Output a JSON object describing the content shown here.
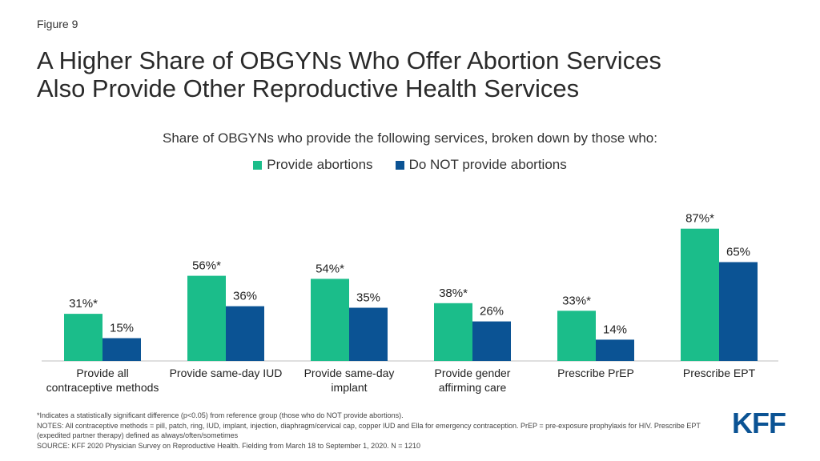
{
  "figure_label": "Figure 9",
  "title_line1": "A Higher Share of OBGYNs Who Offer Abortion Services",
  "title_line2": "Also Provide Other Reproductive Health Services",
  "logo_text": "KFF",
  "notes": {
    "significance": "*Indicates a statistically significant difference  (p<0.05) from reference  group (those who do NOT  provide  abortions).",
    "methods": "NOTES: All contraceptive methods = pill, patch, ring, IUD, implant, injection, diaphragm/cervical  cap, copper IUD and Ella for emergency contraception. PrEP = pre-exposure prophylaxis for HIV. Prescribe EPT (expedited partner therapy) defined as always/often/sometimes",
    "source": "SOURCE: KFF 2020 Physician Survey on Reproductive  Health. Fielding from March 18 to September 1, 2020. N = 1210"
  },
  "chart_data": {
    "type": "bar",
    "subtitle": "Share of OBGYNs who provide the following services, broken down by those who:",
    "categories": [
      [
        "Provide all",
        "contraceptive methods"
      ],
      [
        "Provide same-day IUD"
      ],
      [
        "Provide same-day",
        "implant"
      ],
      [
        "Provide gender",
        "affirming care"
      ],
      [
        "Prescribe PrEP"
      ],
      [
        "Prescribe EPT"
      ]
    ],
    "series": [
      {
        "name": "Provide abortions",
        "color": "#1bbd8a",
        "values": [
          31,
          56,
          54,
          38,
          33,
          87
        ],
        "labels": [
          "31%*",
          "56%*",
          "54%*",
          "38%*",
          "33%*",
          "87%*"
        ]
      },
      {
        "name": "Do NOT provide abortions",
        "color": "#0b5394",
        "values": [
          15,
          36,
          35,
          26,
          14,
          65
        ],
        "labels": [
          "15%",
          "36%",
          "35%",
          "26%",
          "14%",
          "65%"
        ]
      }
    ],
    "ylim": [
      0,
      100
    ],
    "legend_position": "top-center",
    "grid": false
  }
}
